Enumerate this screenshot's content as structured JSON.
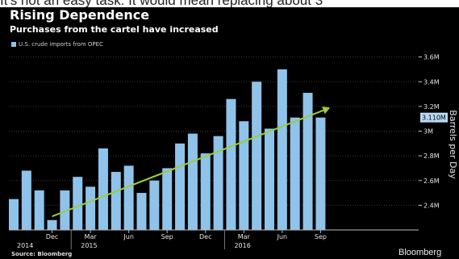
{
  "article": {
    "text": "It's not an easy task. It would mean replacing about 3"
  },
  "chart_data": {
    "type": "bar",
    "title": "Rising Dependence",
    "subtitle": "Purchases from the cartel have increased",
    "legend_label": "U.S. crude imports from OPEC",
    "ylabel": "Barrels per Day",
    "ylim": [
      2.2,
      3.65
    ],
    "y_ticks": [
      {
        "value": 2.4,
        "label": "2.4M"
      },
      {
        "value": 2.6,
        "label": "2.6M"
      },
      {
        "value": 2.8,
        "label": "2.8M"
      },
      {
        "value": 3.0,
        "label": "3M"
      },
      {
        "value": 3.2,
        "label": "3.2M"
      },
      {
        "value": 3.4,
        "label": "3.4M"
      },
      {
        "value": 3.6,
        "label": "3.6M"
      }
    ],
    "series": [
      {
        "values": [
          2.45,
          2.68,
          2.52,
          2.28,
          2.52,
          2.63,
          2.55,
          2.86,
          2.67,
          2.72,
          2.5,
          2.6,
          2.7,
          2.9,
          2.98,
          2.82,
          2.96,
          3.26,
          3.08,
          3.4,
          3.02,
          3.5,
          3.11,
          3.31,
          3.11
        ]
      }
    ],
    "month_labels": [
      {
        "index": 3,
        "label": "Dec"
      },
      {
        "index": 6,
        "label": "Mar"
      },
      {
        "index": 9,
        "label": "Jun"
      },
      {
        "index": 12,
        "label": "Sep"
      },
      {
        "index": 15,
        "label": "Dec"
      },
      {
        "index": 18,
        "label": "Mar"
      },
      {
        "index": 21,
        "label": "Jun"
      },
      {
        "index": 24,
        "label": "Sep"
      }
    ],
    "year_labels": [
      {
        "index": 0,
        "label": "2014"
      },
      {
        "index": 5,
        "label": "2015"
      },
      {
        "index": 17,
        "label": "2016"
      }
    ],
    "last_value_label": "3.110M",
    "last_value": 3.11,
    "trendline": {
      "from_index": 3,
      "from_value": 2.31,
      "to_index": 25,
      "to_value": 3.19
    },
    "colors": {
      "bars": "#8fc3ea",
      "trendline": "#9ccc3d",
      "background": "#000000",
      "grid": "#3a3a3a",
      "last_value_box": "#b9d9f3"
    }
  },
  "footer": {
    "source": "Source: Bloomberg",
    "brand": "Bloomberg"
  }
}
